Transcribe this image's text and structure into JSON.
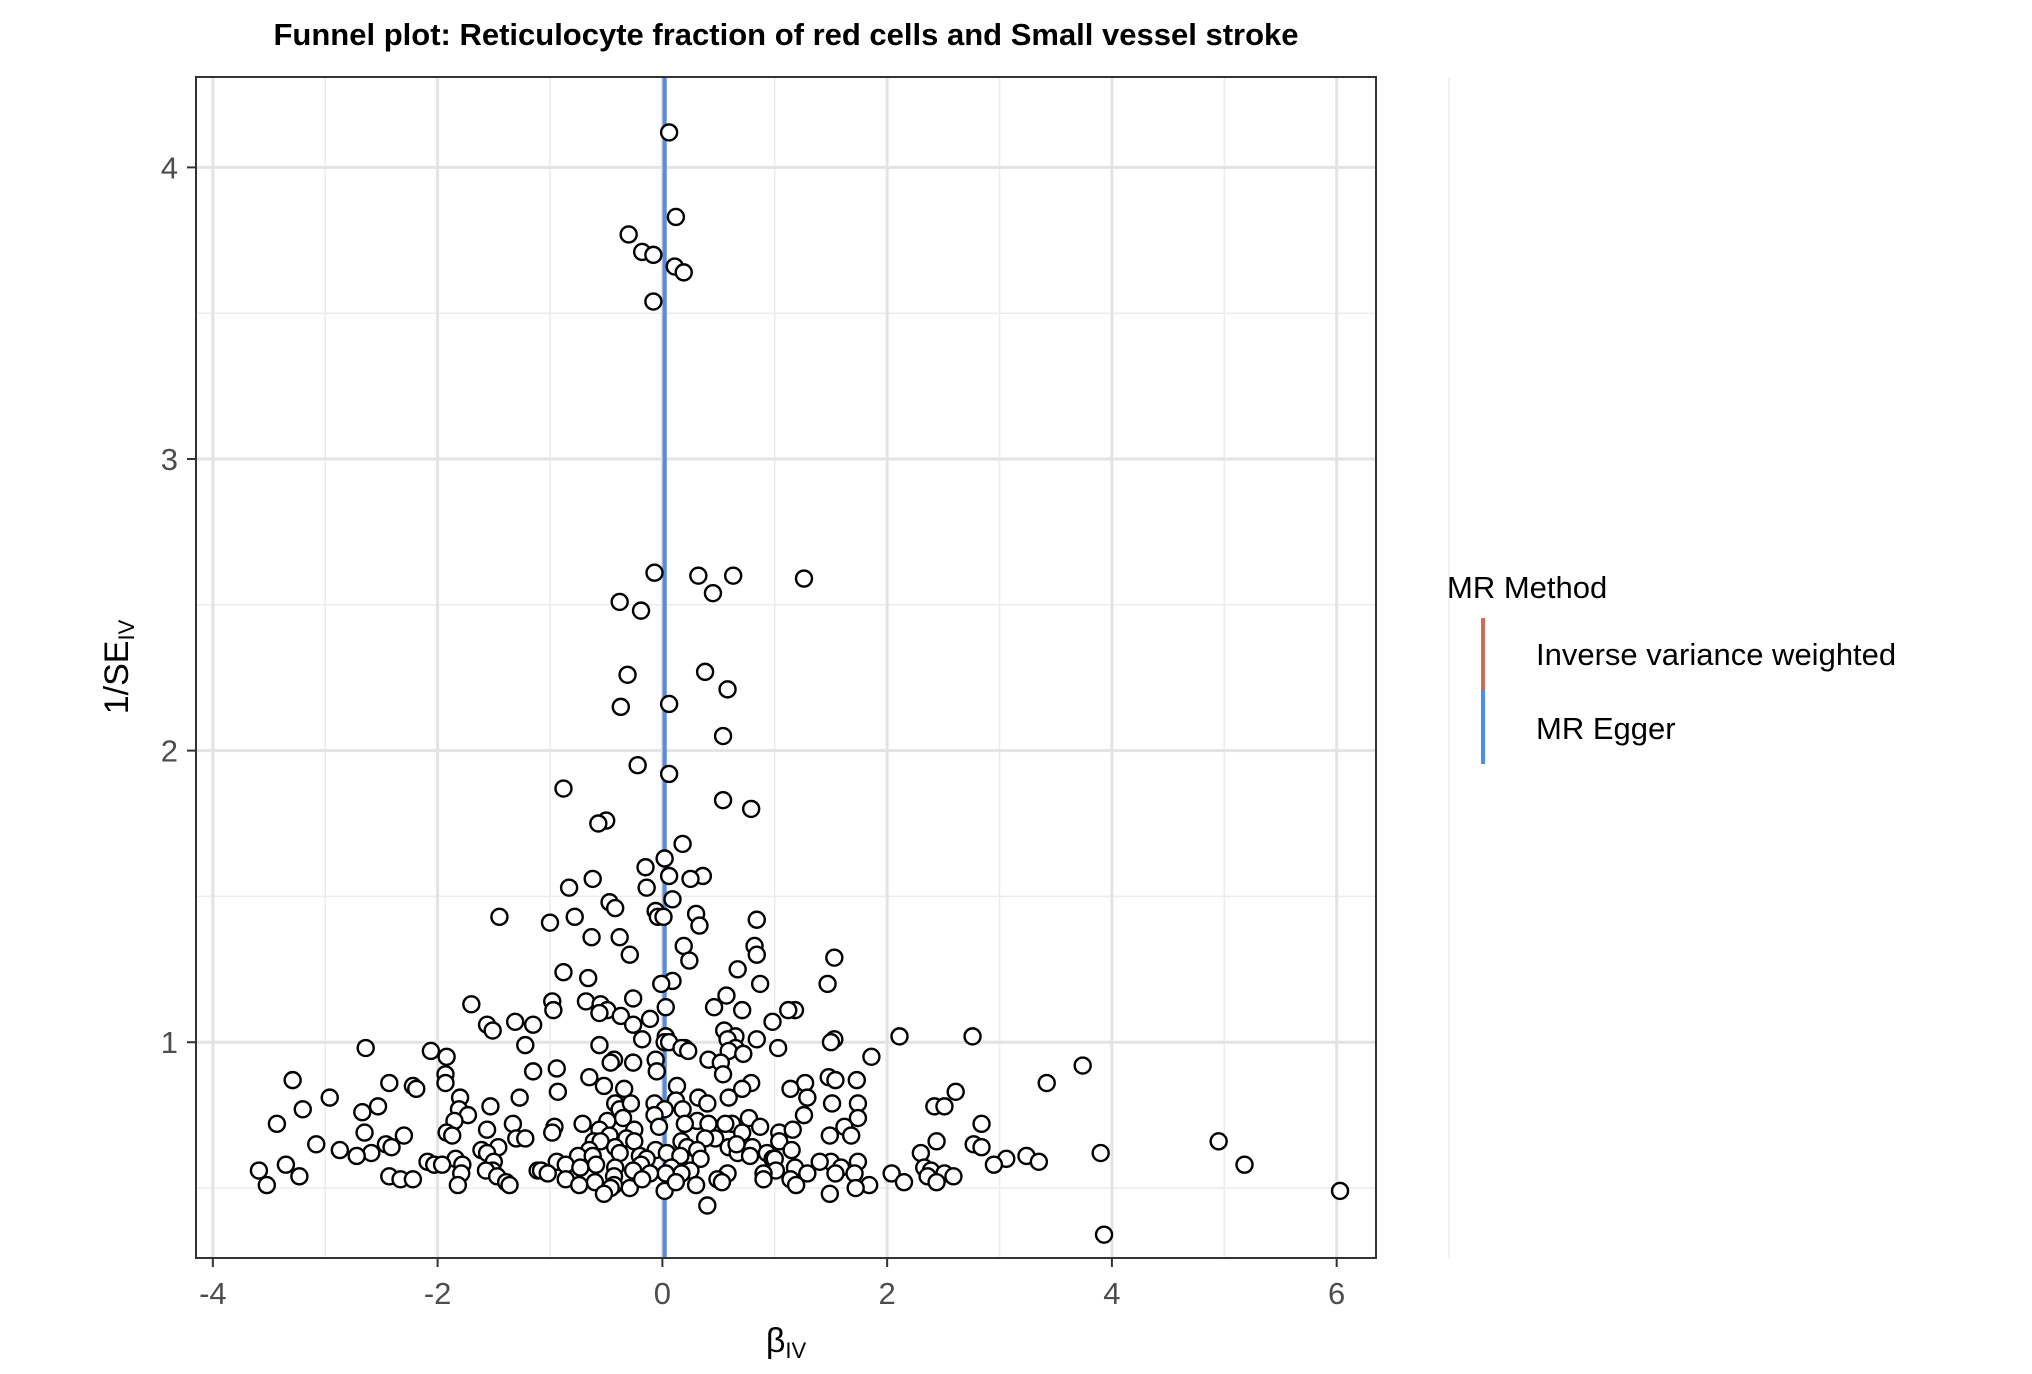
{
  "chart_data": {
    "type": "scatter",
    "title": "Funnel plot: Reticulocyte fraction of red cells and Small vessel stroke",
    "xlabel": {
      "main": "β",
      "sub": "IV"
    },
    "ylabel": {
      "main": "1/SE",
      "sub": "IV"
    },
    "xlim": [
      -4.15,
      6.35
    ],
    "ylim": [
      0.26,
      4.31
    ],
    "x_ticks": [
      -4,
      -2,
      0,
      2,
      4,
      6
    ],
    "y_ticks": [
      1,
      2,
      3,
      4
    ],
    "grid": true,
    "legend": {
      "title": "MR Method",
      "position": "right",
      "entries": [
        {
          "label": "Inverse variance weighted",
          "color": "#D06A59"
        },
        {
          "label": "MR Egger",
          "color": "#4D8FE8"
        }
      ]
    },
    "vlines": [
      {
        "method": "Inverse variance weighted",
        "x": 0.02,
        "color": "#D06A59"
      },
      {
        "method": "MR Egger",
        "x": 0.02,
        "color": "#4D8FE8"
      }
    ],
    "points": [
      [
        0.06,
        4.12
      ],
      [
        0.12,
        3.83
      ],
      [
        -0.3,
        3.77
      ],
      [
        -0.18,
        3.71
      ],
      [
        -0.08,
        3.7
      ],
      [
        0.11,
        3.66
      ],
      [
        0.19,
        3.64
      ],
      [
        -0.08,
        3.54
      ],
      [
        -0.07,
        2.61
      ],
      [
        0.32,
        2.6
      ],
      [
        0.63,
        2.6
      ],
      [
        1.26,
        2.59
      ],
      [
        0.45,
        2.54
      ],
      [
        -0.38,
        2.51
      ],
      [
        -0.19,
        2.48
      ],
      [
        0.38,
        2.27
      ],
      [
        -0.31,
        2.26
      ],
      [
        0.58,
        2.21
      ],
      [
        -0.37,
        2.15
      ],
      [
        0.06,
        2.16
      ],
      [
        0.54,
        2.05
      ],
      [
        -0.22,
        1.95
      ],
      [
        0.06,
        1.92
      ],
      [
        -0.88,
        1.87
      ],
      [
        0.54,
        1.83
      ],
      [
        0.79,
        1.8
      ],
      [
        -0.5,
        1.76
      ],
      [
        -0.57,
        1.75
      ],
      [
        0.18,
        1.68
      ],
      [
        0.02,
        1.63
      ],
      [
        -0.15,
        1.6
      ],
      [
        0.06,
        1.57
      ],
      [
        0.36,
        1.57
      ],
      [
        0.25,
        1.56
      ],
      [
        -0.62,
        1.56
      ],
      [
        -0.83,
        1.53
      ],
      [
        -0.14,
        1.53
      ],
      [
        0.09,
        1.49
      ],
      [
        -0.47,
        1.48
      ],
      [
        -0.42,
        1.46
      ],
      [
        -0.06,
        1.45
      ],
      [
        -0.04,
        1.43
      ],
      [
        0.01,
        1.43
      ],
      [
        0.3,
        1.44
      ],
      [
        -1.45,
        1.43
      ],
      [
        -0.78,
        1.43
      ],
      [
        0.33,
        1.4
      ],
      [
        -1.0,
        1.41
      ],
      [
        0.84,
        1.42
      ],
      [
        -0.38,
        1.36
      ],
      [
        -0.63,
        1.36
      ],
      [
        0.82,
        1.33
      ],
      [
        0.19,
        1.33
      ],
      [
        0.84,
        1.3
      ],
      [
        -0.29,
        1.3
      ],
      [
        0.24,
        1.28
      ],
      [
        1.53,
        1.29
      ],
      [
        0.67,
        1.25
      ],
      [
        -0.88,
        1.24
      ],
      [
        -0.66,
        1.22
      ],
      [
        0.09,
        1.21
      ],
      [
        -0.01,
        1.2
      ],
      [
        1.47,
        1.2
      ],
      [
        0.87,
        1.2
      ],
      [
        0.57,
        1.16
      ],
      [
        -0.26,
        1.15
      ],
      [
        -0.68,
        1.14
      ],
      [
        -0.98,
        1.14
      ],
      [
        0.46,
        1.12
      ],
      [
        -0.55,
        1.13
      ],
      [
        -1.7,
        1.13
      ],
      [
        0.03,
        1.12
      ],
      [
        1.18,
        1.11
      ],
      [
        -0.49,
        1.11
      ],
      [
        1.12,
        1.11
      ],
      [
        0.71,
        1.11
      ],
      [
        -0.97,
        1.11
      ],
      [
        -0.56,
        1.1
      ],
      [
        -0.37,
        1.09
      ],
      [
        -0.11,
        1.08
      ],
      [
        -0.26,
        1.06
      ],
      [
        -1.31,
        1.07
      ],
      [
        -1.15,
        1.06
      ],
      [
        -1.56,
        1.06
      ],
      [
        0.98,
        1.07
      ],
      [
        -1.51,
        1.04
      ],
      [
        0.55,
        1.04
      ],
      [
        0.03,
        1.02
      ],
      [
        0.84,
        1.01
      ],
      [
        2.11,
        1.02
      ],
      [
        2.76,
        1.02
      ],
      [
        1.53,
        1.01
      ],
      [
        0.65,
        1.02
      ],
      [
        -0.18,
        1.01
      ],
      [
        0.02,
        1.0
      ],
      [
        0.06,
        1.0
      ],
      [
        0.58,
        1.01
      ],
      [
        1.5,
        1.0
      ],
      [
        -1.22,
        0.99
      ],
      [
        -0.56,
        0.99
      ],
      [
        0.2,
        0.98
      ],
      [
        0.65,
        0.98
      ],
      [
        -2.64,
        0.98
      ],
      [
        1.03,
        0.98
      ],
      [
        0.17,
        0.98
      ],
      [
        -2.06,
        0.97
      ],
      [
        0.23,
        0.97
      ],
      [
        0.59,
        0.97
      ],
      [
        0.72,
        0.96
      ],
      [
        -1.92,
        0.95
      ],
      [
        1.86,
        0.95
      ],
      [
        -0.43,
        0.94
      ],
      [
        -0.06,
        0.94
      ],
      [
        0.41,
        0.94
      ],
      [
        0.52,
        0.93
      ],
      [
        -0.46,
        0.93
      ],
      [
        -0.26,
        0.93
      ],
      [
        -1.15,
        0.9
      ],
      [
        -0.94,
        0.91
      ],
      [
        -0.05,
        0.9
      ],
      [
        -1.93,
        0.89
      ],
      [
        0.54,
        0.89
      ],
      [
        3.74,
        0.92
      ],
      [
        -0.65,
        0.88
      ],
      [
        1.48,
        0.88
      ],
      [
        1.54,
        0.87
      ],
      [
        -3.29,
        0.87
      ],
      [
        -2.43,
        0.86
      ],
      [
        -1.93,
        0.86
      ],
      [
        -0.52,
        0.85
      ],
      [
        1.73,
        0.87
      ],
      [
        0.13,
        0.85
      ],
      [
        0.79,
        0.86
      ],
      [
        1.27,
        0.86
      ],
      [
        -0.34,
        0.84
      ],
      [
        3.42,
        0.86
      ],
      [
        -2.22,
        0.85
      ],
      [
        1.14,
        0.84
      ],
      [
        0.71,
        0.84
      ],
      [
        -0.93,
        0.83
      ],
      [
        2.61,
        0.83
      ],
      [
        -1.8,
        0.81
      ],
      [
        -2.19,
        0.84
      ],
      [
        -1.27,
        0.81
      ],
      [
        -2.96,
        0.81
      ],
      [
        0.59,
        0.81
      ],
      [
        0.32,
        0.81
      ],
      [
        -0.42,
        0.79
      ],
      [
        0.12,
        0.8
      ],
      [
        1.29,
        0.81
      ],
      [
        -0.38,
        0.77
      ],
      [
        -0.07,
        0.79
      ],
      [
        0.4,
        0.79
      ],
      [
        -1.53,
        0.78
      ],
      [
        1.51,
        0.79
      ],
      [
        1.74,
        0.79
      ],
      [
        -0.28,
        0.79
      ],
      [
        -2.53,
        0.78
      ],
      [
        2.42,
        0.78
      ],
      [
        2.51,
        0.78
      ],
      [
        -3.2,
        0.77
      ],
      [
        -2.67,
        0.76
      ],
      [
        0.18,
        0.77
      ],
      [
        0.02,
        0.77
      ],
      [
        -1.81,
        0.77
      ],
      [
        -0.07,
        0.75
      ],
      [
        -1.73,
        0.75
      ],
      [
        1.26,
        0.75
      ],
      [
        -0.35,
        0.74
      ],
      [
        0.77,
        0.74
      ],
      [
        1.74,
        0.74
      ],
      [
        -1.85,
        0.73
      ],
      [
        -0.49,
        0.73
      ],
      [
        0.62,
        0.72
      ],
      [
        0.31,
        0.73
      ],
      [
        0.41,
        0.72
      ],
      [
        -3.43,
        0.72
      ],
      [
        -0.71,
        0.72
      ],
      [
        -1.33,
        0.72
      ],
      [
        0.56,
        0.72
      ],
      [
        0.2,
        0.72
      ],
      [
        0.87,
        0.71
      ],
      [
        1.62,
        0.71
      ],
      [
        2.84,
        0.72
      ],
      [
        -0.56,
        0.7
      ],
      [
        -0.96,
        0.71
      ],
      [
        -1.56,
        0.7
      ],
      [
        1.04,
        0.69
      ],
      [
        1.16,
        0.7
      ],
      [
        0.71,
        0.69
      ],
      [
        -0.03,
        0.71
      ],
      [
        -0.25,
        0.7
      ],
      [
        -0.98,
        0.69
      ],
      [
        -1.92,
        0.69
      ],
      [
        -2.65,
        0.69
      ],
      [
        1.68,
        0.68
      ],
      [
        -1.87,
        0.68
      ],
      [
        -0.47,
        0.68
      ],
      [
        -0.32,
        0.67
      ],
      [
        1.49,
        0.68
      ],
      [
        0.47,
        0.67
      ],
      [
        -2.3,
        0.68
      ],
      [
        -1.3,
        0.67
      ],
      [
        -1.22,
        0.67
      ],
      [
        -0.61,
        0.66
      ],
      [
        -0.25,
        0.66
      ],
      [
        -0.55,
        0.66
      ],
      [
        0.38,
        0.67
      ],
      [
        1.04,
        0.66
      ],
      [
        0.17,
        0.66
      ],
      [
        -3.08,
        0.65
      ],
      [
        -2.46,
        0.65
      ],
      [
        -1.46,
        0.64
      ],
      [
        -2.41,
        0.64
      ],
      [
        2.44,
        0.66
      ],
      [
        2.77,
        0.65
      ],
      [
        2.84,
        0.64
      ],
      [
        0.22,
        0.64
      ],
      [
        -0.42,
        0.64
      ],
      [
        0.8,
        0.64
      ],
      [
        0.59,
        0.64
      ],
      [
        -0.06,
        0.63
      ],
      [
        -2.87,
        0.63
      ],
      [
        0.31,
        0.63
      ],
      [
        -1.61,
        0.63
      ],
      [
        -0.65,
        0.63
      ],
      [
        1.15,
        0.63
      ],
      [
        0.93,
        0.62
      ],
      [
        -0.38,
        0.62
      ],
      [
        -1.56,
        0.62
      ],
      [
        2.3,
        0.62
      ],
      [
        3.9,
        0.62
      ],
      [
        0.04,
        0.62
      ],
      [
        -2.59,
        0.62
      ],
      [
        -0.2,
        0.61
      ],
      [
        0.67,
        0.62
      ],
      [
        -0.75,
        0.61
      ],
      [
        3.24,
        0.61
      ],
      [
        -2.72,
        0.61
      ],
      [
        -0.62,
        0.61
      ],
      [
        3.06,
        0.6
      ],
      [
        0.16,
        0.61
      ],
      [
        0.34,
        0.6
      ],
      [
        0.98,
        0.6
      ],
      [
        1.0,
        0.6
      ],
      [
        -1.84,
        0.6
      ],
      [
        -0.14,
        0.6
      ],
      [
        3.35,
        0.59
      ],
      [
        -2.09,
        0.59
      ],
      [
        -1.5,
        0.59
      ],
      [
        1.5,
        0.59
      ],
      [
        -0.94,
        0.59
      ],
      [
        -2.03,
        0.58
      ],
      [
        -0.86,
        0.58
      ],
      [
        1.74,
        0.59
      ],
      [
        -0.59,
        0.58
      ],
      [
        -1.78,
        0.58
      ],
      [
        -1.96,
        0.58
      ],
      [
        2.95,
        0.58
      ],
      [
        5.18,
        0.58
      ],
      [
        -0.19,
        0.58
      ],
      [
        -0.42,
        0.57
      ],
      [
        2.33,
        0.57
      ],
      [
        1.18,
        0.57
      ],
      [
        -3.35,
        0.58
      ],
      [
        -0.73,
        0.57
      ],
      [
        0.08,
        0.57
      ],
      [
        1.59,
        0.57
      ],
      [
        -1.51,
        0.56
      ],
      [
        -1.57,
        0.56
      ],
      [
        0.25,
        0.56
      ],
      [
        -1.11,
        0.56
      ],
      [
        1.01,
        0.56
      ],
      [
        -0.26,
        0.56
      ],
      [
        -1.08,
        0.56
      ],
      [
        2.39,
        0.56
      ],
      [
        -3.59,
        0.56
      ],
      [
        0.58,
        0.55
      ],
      [
        2.04,
        0.55
      ],
      [
        1.29,
        0.55
      ],
      [
        1.54,
        0.55
      ],
      [
        2.51,
        0.55
      ],
      [
        0.17,
        0.55
      ],
      [
        0.03,
        0.55
      ],
      [
        -0.11,
        0.55
      ],
      [
        0.9,
        0.55
      ],
      [
        1.71,
        0.55
      ],
      [
        -1.02,
        0.55
      ],
      [
        -1.79,
        0.55
      ],
      [
        -2.43,
        0.54
      ],
      [
        -1.47,
        0.54
      ],
      [
        -2.33,
        0.53
      ],
      [
        -3.23,
        0.54
      ],
      [
        2.36,
        0.54
      ],
      [
        -2.22,
        0.53
      ],
      [
        -0.43,
        0.54
      ],
      [
        0.49,
        0.53
      ],
      [
        -0.86,
        0.53
      ],
      [
        1.14,
        0.53
      ],
      [
        -1.39,
        0.52
      ],
      [
        0.9,
        0.53
      ],
      [
        2.44,
        0.52
      ],
      [
        0.53,
        0.52
      ],
      [
        2.59,
        0.54
      ],
      [
        -0.6,
        0.52
      ],
      [
        -1.82,
        0.51
      ],
      [
        -1.36,
        0.51
      ],
      [
        -0.43,
        0.51
      ],
      [
        -3.52,
        0.51
      ],
      [
        -0.74,
        0.51
      ],
      [
        0.3,
        0.51
      ],
      [
        1.19,
        0.51
      ],
      [
        1.84,
        0.51
      ],
      [
        -0.46,
        0.5
      ],
      [
        1.72,
        0.5
      ],
      [
        0.02,
        0.49
      ],
      [
        1.49,
        0.48
      ],
      [
        -0.52,
        0.48
      ],
      [
        0.4,
        0.44
      ],
      [
        6.03,
        0.49
      ],
      [
        4.95,
        0.66
      ],
      [
        3.93,
        0.34
      ],
      [
        2.15,
        0.52
      ],
      [
        -0.29,
        0.5
      ],
      [
        0.12,
        0.52
      ],
      [
        -0.18,
        0.53
      ],
      [
        0.66,
        0.65
      ],
      [
        0.78,
        0.61
      ],
      [
        1.4,
        0.59
      ]
    ]
  }
}
